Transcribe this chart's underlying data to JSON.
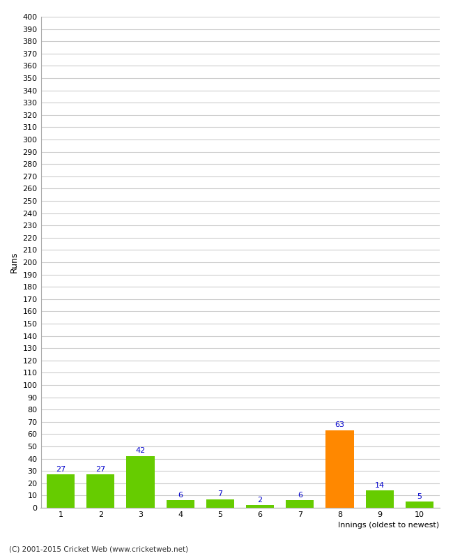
{
  "title": "",
  "xlabel": "Innings (oldest to newest)",
  "ylabel": "Runs",
  "categories": [
    "1",
    "2",
    "3",
    "4",
    "5",
    "6",
    "7",
    "8",
    "9",
    "10"
  ],
  "values": [
    27,
    27,
    42,
    6,
    7,
    2,
    6,
    63,
    14,
    5
  ],
  "bar_colors": [
    "#66cc00",
    "#66cc00",
    "#66cc00",
    "#66cc00",
    "#66cc00",
    "#66cc00",
    "#66cc00",
    "#ff8800",
    "#66cc00",
    "#66cc00"
  ],
  "ylim": [
    0,
    400
  ],
  "yticks": [
    0,
    10,
    20,
    30,
    40,
    50,
    60,
    70,
    80,
    90,
    100,
    110,
    120,
    130,
    140,
    150,
    160,
    170,
    180,
    190,
    200,
    210,
    220,
    230,
    240,
    250,
    260,
    270,
    280,
    290,
    300,
    310,
    320,
    330,
    340,
    350,
    360,
    370,
    380,
    390,
    400
  ],
  "label_color": "#0000cc",
  "label_fontsize": 8,
  "axis_fontsize": 8,
  "background_color": "#ffffff",
  "grid_color": "#cccccc",
  "footer": "(C) 2001-2015 Cricket Web (www.cricketweb.net)",
  "bar_width": 0.7
}
